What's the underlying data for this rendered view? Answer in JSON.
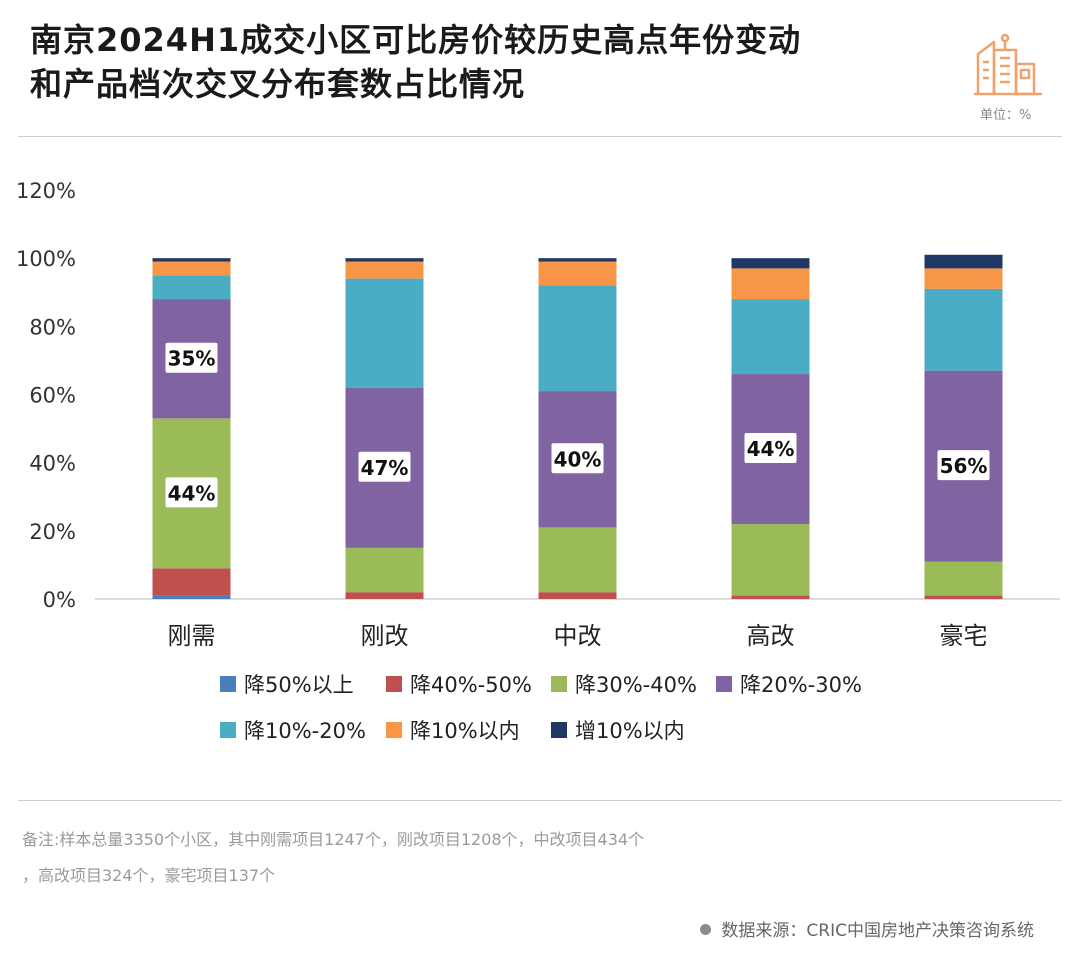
{
  "header": {
    "title_line1": "南京2024H1成交小区可比房价较历史高点年份变动",
    "title_line2": "和产品档次交叉分布套数占比情况",
    "unit": "单位：%",
    "icon": "city-buildings-icon",
    "accent_color": "#f0a26a"
  },
  "chart_data": {
    "type": "bar",
    "stacked": true,
    "categories": [
      "刚需",
      "刚改",
      "中改",
      "高改",
      "豪宅"
    ],
    "ylim": [
      0,
      120
    ],
    "yticks": [
      0,
      20,
      40,
      60,
      80,
      100,
      120
    ],
    "ytick_labels": [
      "0%",
      "20%",
      "40%",
      "60%",
      "80%",
      "100%",
      "120%"
    ],
    "grid": false,
    "legend_position": "bottom",
    "series": [
      {
        "name": "降50%以上",
        "color": "#4a7ebb",
        "values": [
          1,
          0,
          0,
          0,
          0
        ]
      },
      {
        "name": "降40%-50%",
        "color": "#c0504d",
        "values": [
          8,
          2,
          2,
          1,
          1
        ]
      },
      {
        "name": "降30%-40%",
        "color": "#9bbb59",
        "values": [
          44,
          13,
          19,
          21,
          10
        ]
      },
      {
        "name": "降20%-30%",
        "color": "#8064a2",
        "values": [
          35,
          47,
          40,
          44,
          56
        ]
      },
      {
        "name": "降10%-20%",
        "color": "#4bacc6",
        "values": [
          7,
          32,
          31,
          22,
          24
        ]
      },
      {
        "name": "降10%以内",
        "color": "#f79646",
        "values": [
          4,
          5,
          7,
          9,
          6
        ]
      },
      {
        "name": "增10%以内",
        "color": "#1f3864",
        "values": [
          1,
          1,
          1,
          3,
          4
        ]
      }
    ],
    "data_labels": [
      {
        "category": "刚需",
        "series": "降30%-40%",
        "text": "44%"
      },
      {
        "category": "刚需",
        "series": "降20%-30%",
        "text": "35%"
      },
      {
        "category": "刚改",
        "series": "降20%-30%",
        "text": "47%"
      },
      {
        "category": "中改",
        "series": "降20%-30%",
        "text": "40%"
      },
      {
        "category": "高改",
        "series": "降20%-30%",
        "text": "44%"
      },
      {
        "category": "豪宅",
        "series": "降20%-30%",
        "text": "56%"
      }
    ]
  },
  "footer": {
    "note_line1": "备注:样本总量3350个小区，其中刚需项目1247个，刚改项目1208个，中改项目434个",
    "note_line2": "，高改项目324个，豪宅项目137个",
    "source": "数据来源：CRIC中国房地产决策咨询系统"
  }
}
